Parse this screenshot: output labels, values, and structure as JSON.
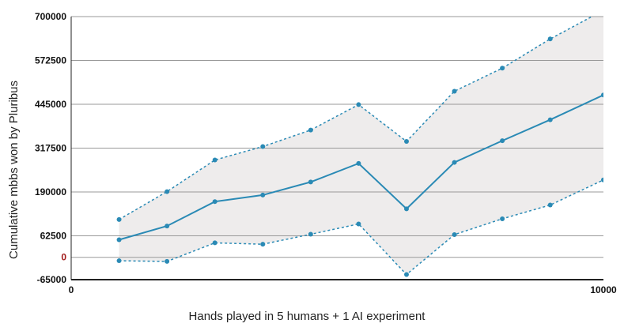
{
  "chart_data": {
    "type": "line",
    "xlabel": "Hands played in 5 humans + 1 AI experiment",
    "ylabel": "Cumulative mbbs won by Pluribus",
    "xlim": [
      0,
      10000
    ],
    "ylim": [
      -65000,
      700000
    ],
    "x_tick_labels": [
      "0",
      "10000"
    ],
    "y_ticks": [
      {
        "value": 700000,
        "label": "700000"
      },
      {
        "value": 572500,
        "label": "572500"
      },
      {
        "value": 445000,
        "label": "445000"
      },
      {
        "value": 317500,
        "label": "317500"
      },
      {
        "value": 190000,
        "label": "190000"
      },
      {
        "value": 62500,
        "label": "62500"
      },
      {
        "value": 0,
        "label": "0"
      },
      {
        "value": -65000,
        "label": "-65000"
      }
    ],
    "grid": "horizontal",
    "legend": "none",
    "x": [
      900,
      1800,
      2700,
      3600,
      4500,
      5400,
      6300,
      7200,
      8100,
      9000,
      10000
    ],
    "series": [
      {
        "role": "upper",
        "style": "dotted",
        "values": [
          110000,
          191000,
          283000,
          322000,
          370000,
          444000,
          337000,
          483000,
          550000,
          635000,
          718000
        ]
      },
      {
        "role": "main",
        "style": "solid",
        "values": [
          51000,
          91000,
          162000,
          181000,
          219000,
          273000,
          141000,
          276000,
          339000,
          400000,
          472000
        ]
      },
      {
        "role": "lower",
        "style": "dotted",
        "values": [
          -10000,
          -12000,
          42000,
          38000,
          67000,
          97000,
          -50000,
          66000,
          112000,
          152000,
          225000
        ]
      }
    ],
    "colors": {
      "line": "#2a8ab5",
      "band": "#eeecec",
      "grid": "#999999",
      "zero_label": "#a11a1a"
    }
  }
}
